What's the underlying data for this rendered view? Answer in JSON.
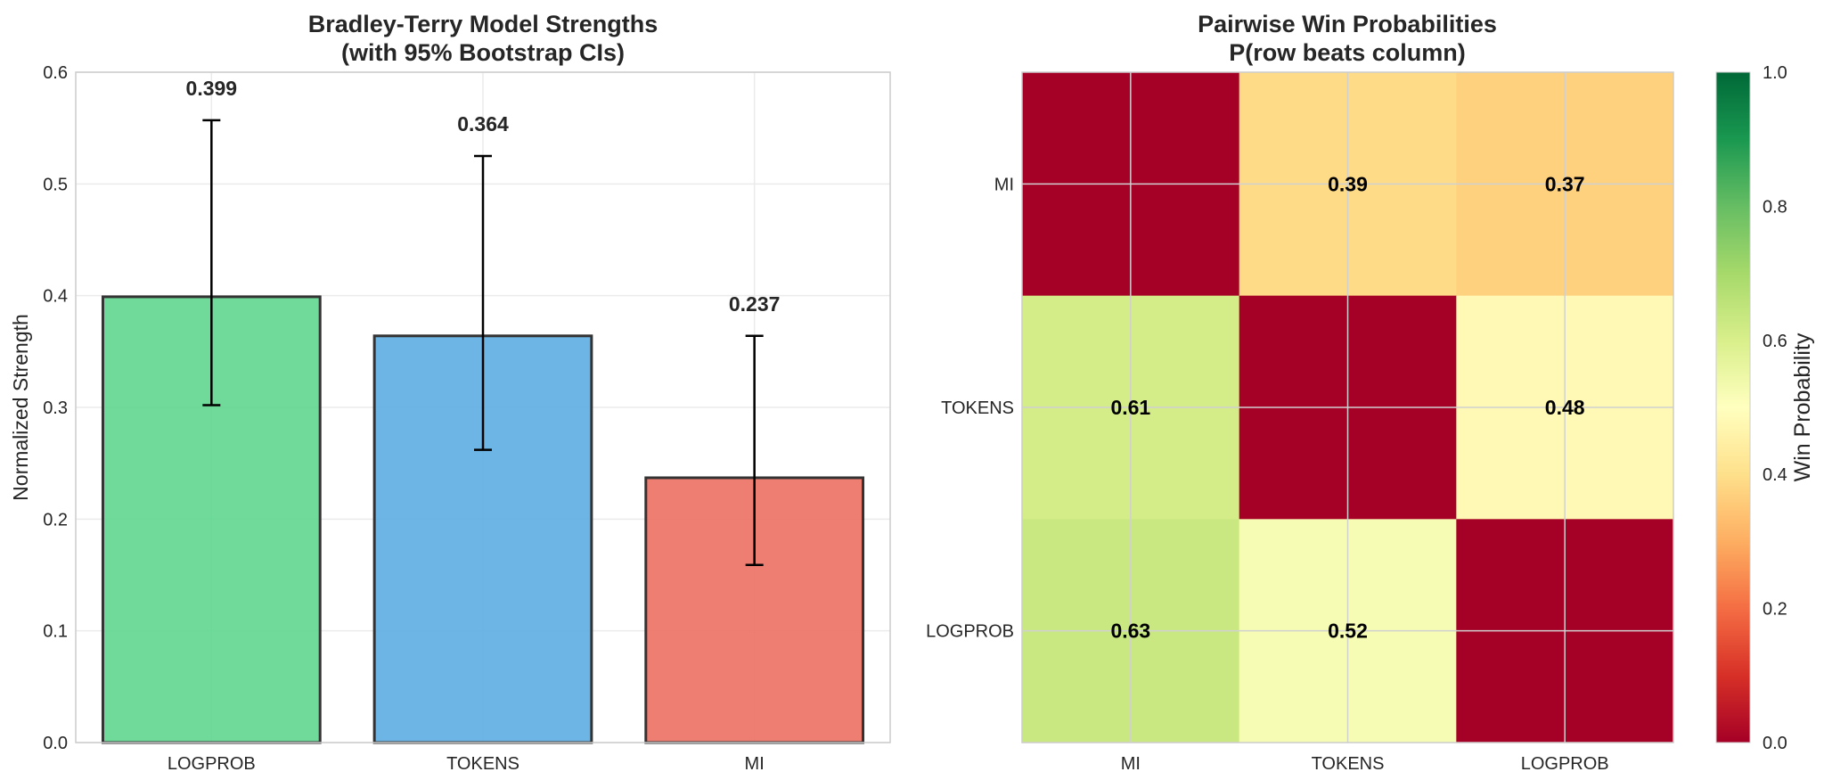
{
  "chart_data": [
    {
      "type": "bar",
      "title_line1": "Bradley-Terry Model Strengths",
      "title_line2": "(with 95% Bootstrap CIs)",
      "xlabel": "",
      "ylabel": "Normalized Strength",
      "categories": [
        "LOGPROB",
        "TOKENS",
        "MI"
      ],
      "values": [
        0.399,
        0.364,
        0.237
      ],
      "value_labels": [
        "0.399",
        "0.364",
        "0.237"
      ],
      "ci_lower": [
        0.302,
        0.262,
        0.159
      ],
      "ci_upper": [
        0.557,
        0.525,
        0.364
      ],
      "colors": [
        "#5fd68f",
        "#5dade2",
        "#ec7063"
      ],
      "ylim": [
        0,
        0.6
      ],
      "yticks": [
        0.0,
        0.1,
        0.2,
        0.3,
        0.4,
        0.5,
        0.6
      ],
      "ytick_labels": [
        "0.0",
        "0.1",
        "0.2",
        "0.3",
        "0.4",
        "0.5",
        "0.6"
      ],
      "grid": true
    },
    {
      "type": "heatmap",
      "title_line1": "Pairwise Win Probabilities",
      "title_line2": "P(row beats column)",
      "row_labels": [
        "MI",
        "TOKENS",
        "LOGPROB"
      ],
      "col_labels": [
        "MI",
        "TOKENS",
        "LOGPROB"
      ],
      "values": [
        [
          0.0,
          0.39,
          0.37
        ],
        [
          0.61,
          0.0,
          0.48
        ],
        [
          0.63,
          0.52,
          0.0
        ]
      ],
      "cell_labels": [
        [
          "",
          "0.39",
          "0.37"
        ],
        [
          "0.61",
          "",
          "0.48"
        ],
        [
          "0.63",
          "0.52",
          ""
        ]
      ],
      "colormap": "RdYlGn",
      "vmin": 0.0,
      "vmax": 1.0,
      "colorbar_label": "Win Probability",
      "colorbar_ticks": [
        0.0,
        0.2,
        0.4,
        0.6,
        0.8,
        1.0
      ],
      "colorbar_tick_labels": [
        "0.0",
        "0.2",
        "0.4",
        "0.6",
        "0.8",
        "1.0"
      ]
    }
  ]
}
